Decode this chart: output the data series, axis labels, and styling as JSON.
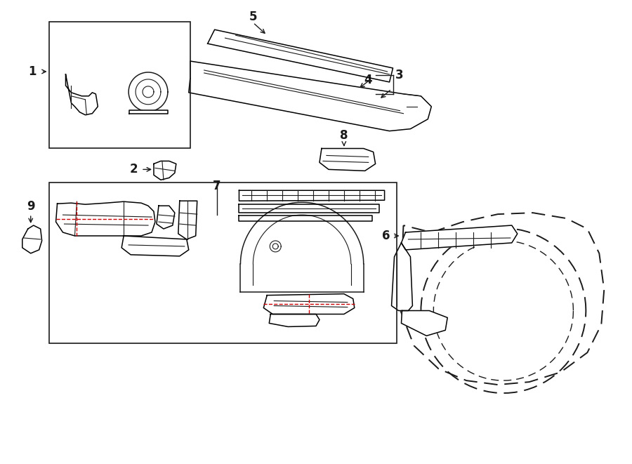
{
  "bg_color": "#ffffff",
  "line_color": "#1a1a1a",
  "red_color": "#cc0000",
  "fig_width": 9.0,
  "fig_height": 6.61,
  "label_fontsize": 12
}
